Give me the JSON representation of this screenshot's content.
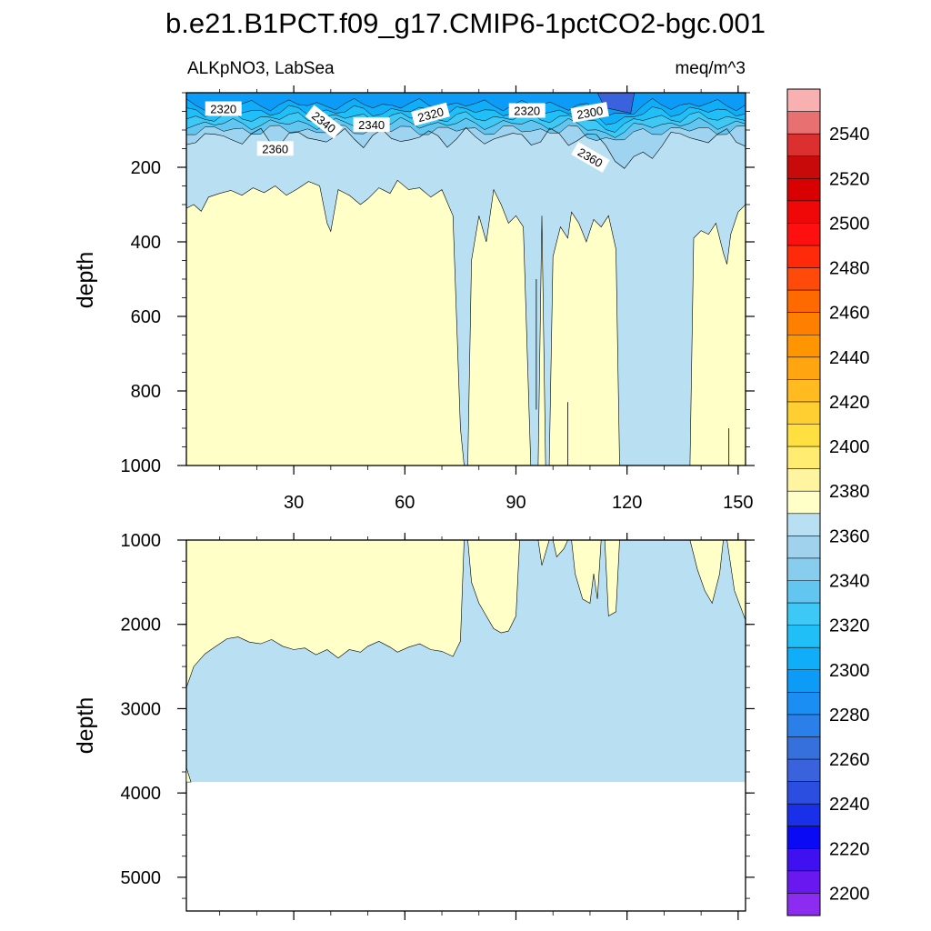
{
  "chart_data": {
    "type": "heatmap",
    "title": "b.e21.B1PCT.f09_g17.CMIP6-1pctCO2-bgc.001",
    "variable": "ALKpNO3, LabSea",
    "units": "meq/m^3",
    "x_ticks": [
      "30",
      "60",
      "90",
      "120",
      "150"
    ],
    "x_range": [
      1,
      152
    ],
    "colors": {
      "deep": "#b9dff2",
      "high": "#ffffc8",
      "frame": "#000000"
    },
    "panels": [
      {
        "name": "upper",
        "ylabel": "depth",
        "ylim": [
          0,
          1000
        ],
        "y_ticks": [
          "200",
          "400",
          "600",
          "800",
          "1000"
        ],
        "contour_labels": [
          {
            "text": "2320",
            "x": 11,
            "y": 45,
            "angle": 0
          },
          {
            "text": "2340",
            "x": 38,
            "y": 80,
            "angle": 38
          },
          {
            "text": "2340",
            "x": 51,
            "y": 88,
            "angle": 0
          },
          {
            "text": "2320",
            "x": 67,
            "y": 60,
            "angle": -15
          },
          {
            "text": "2320",
            "x": 93,
            "y": 50,
            "angle": 0
          },
          {
            "text": "2300",
            "x": 110,
            "y": 55,
            "angle": -10
          },
          {
            "text": "2360",
            "x": 25,
            "y": 152,
            "angle": 0
          },
          {
            "text": "2360",
            "x": 110,
            "y": 175,
            "angle": 30
          }
        ]
      },
      {
        "name": "lower",
        "ylabel": "depth",
        "ylim": [
          1000,
          5400
        ],
        "y_ticks": [
          "1000",
          "2000",
          "3000",
          "4000",
          "5000"
        ],
        "ocean_floor": 3870
      }
    ],
    "colorbar": {
      "levels": [
        2200,
        2210,
        2220,
        2230,
        2240,
        2250,
        2260,
        2270,
        2280,
        2290,
        2300,
        2310,
        2320,
        2330,
        2340,
        2350,
        2360,
        2370,
        2380,
        2390,
        2400,
        2410,
        2420,
        2430,
        2440,
        2450,
        2460,
        2470,
        2480,
        2490,
        2500,
        2510,
        2520,
        2530,
        2540,
        2550
      ],
      "labels": [
        "2200",
        "2220",
        "2240",
        "2260",
        "2280",
        "2300",
        "2320",
        "2340",
        "2360",
        "2380",
        "2400",
        "2420",
        "2440",
        "2460",
        "2480",
        "2500",
        "2520",
        "2540"
      ],
      "colors": [
        "#8c2cf0",
        "#6a18f0",
        "#3f10f0",
        "#0a0af5",
        "#1a30e8",
        "#2c4ee0",
        "#3a62dc",
        "#3570dc",
        "#2a80e8",
        "#1a8ef2",
        "#0c9bf6",
        "#10aef8",
        "#20bff8",
        "#3ec8f6",
        "#62c6f0",
        "#88cdee",
        "#a0d2ee",
        "#b9dff2",
        "#ffffc8",
        "#fff4a0",
        "#ffec70",
        "#ffe040",
        "#ffce30",
        "#ffbb20",
        "#ffa510",
        "#ff9500",
        "#ff8000",
        "#ff6a00",
        "#ff4a0a",
        "#ff2a0a",
        "#ff1010",
        "#f00808",
        "#d80000",
        "#c80a0a",
        "#dc3030",
        "#e87070",
        "#f8b0b0"
      ]
    }
  }
}
